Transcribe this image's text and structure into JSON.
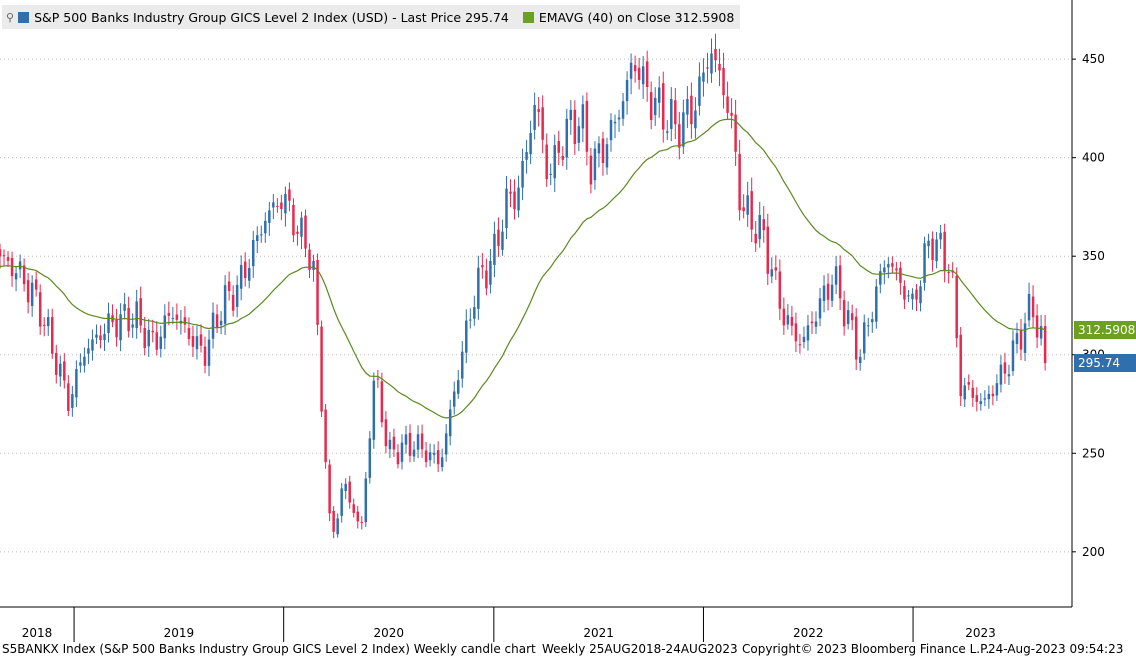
{
  "legend": {
    "pin_glyph": "⚲",
    "series1_label": "S&P 500 Banks Industry Group GICS Level 2 Index (USD) - Last Price 295.74",
    "series2_label": "EMAVG (40)   on Close 312.5908"
  },
  "tags": {
    "ema_value": "312.5908",
    "last_value": "295.74"
  },
  "footer": {
    "description": "S5BANKX Index (S&P 500 Banks Industry Group GICS Level 2 Index) Weekly candle chart",
    "range": "Weekly 25AUG2018-24AUG2023",
    "copyright": "Copyright© 2023 Bloomberg Finance L.P.",
    "timestamp": "24-Aug-2023 09:54:23"
  },
  "colors": {
    "up": "#2f6fae",
    "down": "#e8284d",
    "ema": "#5a8a1e",
    "grid": "#bdbdbd"
  },
  "chart_data": {
    "type": "candlestick",
    "frequency": "weekly",
    "x_range": [
      "2018-08-25",
      "2023-08-24"
    ],
    "year_labels": [
      "2018",
      "2019",
      "2020",
      "2021",
      "2022",
      "2023"
    ],
    "y_ticks": [
      200,
      250,
      300,
      350,
      400,
      450
    ],
    "ylim": [
      172,
      480
    ],
    "grid": true,
    "close_anchors": [
      [
        "2018-08-25",
        350
      ],
      [
        "2018-10-01",
        340
      ],
      [
        "2018-11-01",
        325
      ],
      [
        "2018-12-24",
        275
      ],
      [
        "2019-01-15",
        300
      ],
      [
        "2019-03-01",
        315
      ],
      [
        "2019-04-15",
        320
      ],
      [
        "2019-05-20",
        305
      ],
      [
        "2019-06-20",
        322
      ],
      [
        "2019-08-15",
        300
      ],
      [
        "2019-09-15",
        325
      ],
      [
        "2019-10-15",
        335
      ],
      [
        "2019-12-01",
        370
      ],
      [
        "2019-12-31",
        380
      ],
      [
        "2020-01-31",
        360
      ],
      [
        "2020-02-20",
        350
      ],
      [
        "2020-03-10",
        265
      ],
      [
        "2020-03-23",
        205
      ],
      [
        "2020-04-15",
        235
      ],
      [
        "2020-05-15",
        210
      ],
      [
        "2020-06-08",
        292
      ],
      [
        "2020-07-01",
        250
      ],
      [
        "2020-08-15",
        255
      ],
      [
        "2020-09-30",
        245
      ],
      [
        "2020-11-06",
        300
      ],
      [
        "2020-12-01",
        335
      ],
      [
        "2021-01-01",
        350
      ],
      [
        "2021-01-20",
        375
      ],
      [
        "2021-02-15",
        385
      ],
      [
        "2021-03-15",
        430
      ],
      [
        "2021-04-05",
        390
      ],
      [
        "2021-05-10",
        415
      ],
      [
        "2021-06-01",
        420
      ],
      [
        "2021-06-20",
        395
      ],
      [
        "2021-07-20",
        410
      ],
      [
        "2021-08-15",
        430
      ],
      [
        "2021-09-01",
        450
      ],
      [
        "2021-10-01",
        430
      ],
      [
        "2021-11-15",
        415
      ],
      [
        "2021-12-15",
        425
      ],
      [
        "2022-01-14",
        455
      ],
      [
        "2022-02-15",
        425
      ],
      [
        "2022-03-08",
        375
      ],
      [
        "2022-04-15",
        360
      ],
      [
        "2022-05-20",
        320
      ],
      [
        "2022-06-20",
        305
      ],
      [
        "2022-08-15",
        340
      ],
      [
        "2022-09-30",
        300
      ],
      [
        "2022-11-15",
        350
      ],
      [
        "2022-12-31",
        325
      ],
      [
        "2023-02-01",
        360
      ],
      [
        "2023-03-08",
        345
      ],
      [
        "2023-03-24",
        285
      ],
      [
        "2023-05-04",
        275
      ],
      [
        "2023-06-15",
        295
      ],
      [
        "2023-07-27",
        325
      ],
      [
        "2023-08-24",
        295.74
      ]
    ],
    "ema": {
      "name": "EMAVG (40)",
      "last": 312.5908
    },
    "last_price": 295.74
  }
}
